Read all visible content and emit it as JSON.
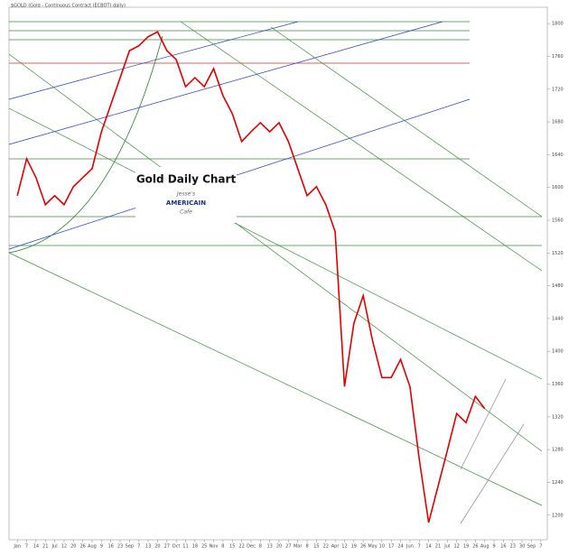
{
  "chart_data": {
    "type": "line",
    "title": "$GOLD (Gold - Continuous Contract (ECBOT) daily)",
    "subtitle": "Gold Daily Chart",
    "logo": [
      "Jesse's",
      "AMERICAIN",
      "Cafe"
    ],
    "categories": [
      "Jan",
      "7",
      "14",
      "21",
      "Jul",
      "12",
      "20",
      "26",
      "Aug",
      "9",
      "16",
      "23",
      "Sep",
      "7",
      "13",
      "20",
      "27",
      "Oct",
      "11",
      "18",
      "25",
      "Nov",
      "8",
      "15",
      "22",
      "Dec",
      "8",
      "13",
      "20",
      "27",
      "Mar",
      "8",
      "15",
      "22",
      "Apr",
      "12",
      "19",
      "26",
      "May",
      "10",
      "17",
      "24",
      "Jun",
      "7",
      "14",
      "21",
      "Jul",
      "12",
      "19",
      "26",
      "Aug",
      "9",
      "16",
      "23",
      "30",
      "Sep",
      "7"
    ],
    "series": [
      {
        "name": "Gold",
        "color": "#e00000",
        "values": [
          1590,
          1635,
          1612,
          1579,
          1590,
          1579,
          1601,
          1612,
          1623,
          1668,
          1701,
          1734,
          1767,
          1773,
          1784,
          1790,
          1767,
          1756,
          1723,
          1734,
          1723,
          1745,
          1712,
          1690,
          1656,
          1668,
          1679,
          1668,
          1679,
          1656,
          1623,
          1590,
          1601,
          1579,
          1546,
          1357,
          1434,
          1468,
          1413,
          1368,
          1368,
          1390,
          1357,
          1268,
          1191,
          1235,
          1279,
          1324,
          1313,
          1345,
          1330,
          null,
          null,
          null,
          null,
          null,
          null
        ]
      }
    ],
    "ylim": [
      1170,
      1820
    ],
    "yticks": [
      1200,
      1240,
      1280,
      1320,
      1360,
      1400,
      1440,
      1480,
      1520,
      1560,
      1600,
      1640,
      1680,
      1720,
      1760,
      1800
    ],
    "grid": false
  }
}
